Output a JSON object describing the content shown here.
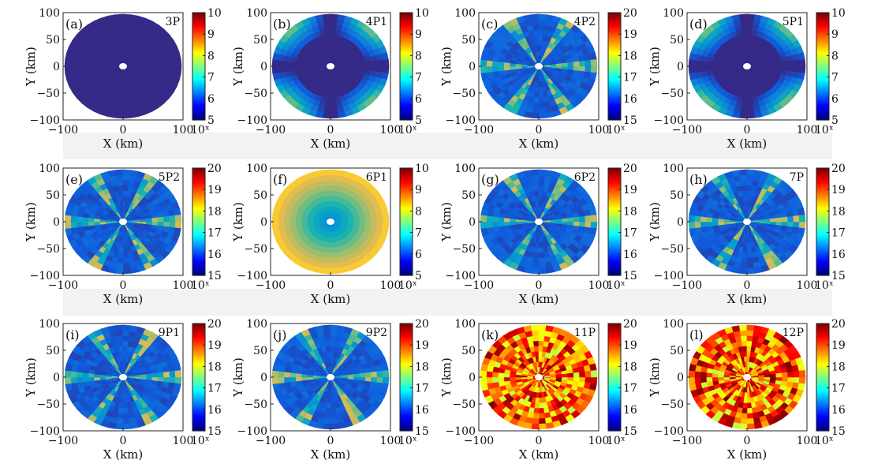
{
  "figure": {
    "x_label": "X (km)",
    "y_label": "Y (km)",
    "colorbar_unit": "10ˣ"
  },
  "chart_data": [
    {
      "type": "heatmap",
      "panel": "(a)",
      "title": "3P",
      "pattern": "uniform",
      "xlim": [
        -100,
        100
      ],
      "ylim": [
        -100,
        100
      ],
      "xticks": [
        "−100",
        "0",
        "100"
      ],
      "yticks": [
        "100",
        "50",
        "0",
        "−50",
        "−100"
      ],
      "xlabel": "X (km)",
      "ylabel": "Y (km)",
      "colorbar": {
        "min": 5,
        "max": 10,
        "ticks": [
          "10",
          "9",
          "8",
          "7",
          "6",
          "5"
        ],
        "unit": "10ˣ"
      }
    },
    {
      "type": "heatmap",
      "panel": "(b)",
      "title": "4P1",
      "pattern": "corner-lobes",
      "xlim": [
        -100,
        100
      ],
      "ylim": [
        -100,
        100
      ],
      "xticks": [
        "−100",
        "0",
        "100"
      ],
      "yticks": [
        "100",
        "50",
        "0",
        "−50",
        "−100"
      ],
      "xlabel": "X (km)",
      "ylabel": "Y (km)",
      "colorbar": {
        "min": 5,
        "max": 10,
        "ticks": [
          "10",
          "9",
          "8",
          "7",
          "6",
          "5"
        ],
        "unit": "10ˣ"
      }
    },
    {
      "type": "heatmap",
      "panel": "(c)",
      "title": "4P2",
      "pattern": "spokes",
      "xlim": [
        -100,
        100
      ],
      "ylim": [
        -100,
        100
      ],
      "xticks": [
        "−100",
        "0",
        "100"
      ],
      "yticks": [
        "100",
        "50",
        "0",
        "−50",
        "−100"
      ],
      "xlabel": "X (km)",
      "ylabel": "Y (km)",
      "colorbar": {
        "min": 15,
        "max": 20,
        "ticks": [
          "20",
          "19",
          "18",
          "17",
          "16",
          "15"
        ],
        "unit": "10ˣ"
      }
    },
    {
      "type": "heatmap",
      "panel": "(d)",
      "title": "5P1",
      "pattern": "corner-lobes",
      "xlim": [
        -100,
        100
      ],
      "ylim": [
        -100,
        100
      ],
      "xticks": [
        "−100",
        "0",
        "100"
      ],
      "yticks": [
        "100",
        "50",
        "0",
        "−50",
        "−100"
      ],
      "xlabel": "X (km)",
      "ylabel": "Y (km)",
      "colorbar": {
        "min": 5,
        "max": 10,
        "ticks": [
          "10",
          "9",
          "8",
          "7",
          "6",
          "5"
        ],
        "unit": "10ˣ"
      }
    },
    {
      "type": "heatmap",
      "panel": "(e)",
      "title": "5P2",
      "pattern": "spokes",
      "xlim": [
        -100,
        100
      ],
      "ylim": [
        -100,
        100
      ],
      "xticks": [
        "−100",
        "0",
        "100"
      ],
      "yticks": [
        "100",
        "50",
        "0",
        "−50",
        "−100"
      ],
      "xlabel": "X (km)",
      "ylabel": "Y (km)",
      "colorbar": {
        "min": 15,
        "max": 20,
        "ticks": [
          "20",
          "19",
          "18",
          "17",
          "16",
          "15"
        ],
        "unit": "10ˣ"
      }
    },
    {
      "type": "heatmap",
      "panel": "(f)",
      "title": "6P1",
      "pattern": "radial-gradient",
      "xlim": [
        -100,
        100
      ],
      "ylim": [
        -100,
        100
      ],
      "xticks": [
        "−100",
        "0",
        "100"
      ],
      "yticks": [
        "100",
        "50",
        "0",
        "−50",
        "−100"
      ],
      "xlabel": "X (km)",
      "ylabel": "Y (km)",
      "colorbar": {
        "min": 5,
        "max": 10,
        "ticks": [
          "10",
          "9",
          "8",
          "7",
          "6",
          "5"
        ],
        "unit": "10ˣ"
      }
    },
    {
      "type": "heatmap",
      "panel": "(g)",
      "title": "6P2",
      "pattern": "spokes",
      "xlim": [
        -100,
        100
      ],
      "ylim": [
        -100,
        100
      ],
      "xticks": [
        "−100",
        "0",
        "100"
      ],
      "yticks": [
        "100",
        "50",
        "0",
        "−50",
        "−100"
      ],
      "xlabel": "X (km)",
      "ylabel": "Y (km)",
      "colorbar": {
        "min": 15,
        "max": 20,
        "ticks": [
          "20",
          "19",
          "18",
          "17",
          "16",
          "15"
        ],
        "unit": "10ˣ"
      }
    },
    {
      "type": "heatmap",
      "panel": "(h)",
      "title": "7P",
      "pattern": "spokes",
      "xlim": [
        -100,
        100
      ],
      "ylim": [
        -100,
        100
      ],
      "xticks": [
        "−100",
        "0",
        "100"
      ],
      "yticks": [
        "100",
        "50",
        "0",
        "−50",
        "−100"
      ],
      "xlabel": "X (km)",
      "ylabel": "Y (km)",
      "colorbar": {
        "min": 15,
        "max": 20,
        "ticks": [
          "20",
          "19",
          "18",
          "17",
          "16",
          "15"
        ],
        "unit": "10ˣ"
      }
    },
    {
      "type": "heatmap",
      "panel": "(i)",
      "title": "9P1",
      "pattern": "spokes",
      "xlim": [
        -100,
        100
      ],
      "ylim": [
        -100,
        100
      ],
      "xticks": [
        "−100",
        "0",
        "100"
      ],
      "yticks": [
        "100",
        "50",
        "0",
        "−50",
        "−100"
      ],
      "xlabel": "X (km)",
      "ylabel": "Y (km)",
      "colorbar": {
        "min": 15,
        "max": 20,
        "ticks": [
          "20",
          "19",
          "18",
          "17",
          "16",
          "15"
        ],
        "unit": "10ˣ"
      }
    },
    {
      "type": "heatmap",
      "panel": "(j)",
      "title": "9P2",
      "pattern": "spokes",
      "xlim": [
        -100,
        100
      ],
      "ylim": [
        -100,
        100
      ],
      "xticks": [
        "−100",
        "0",
        "100"
      ],
      "yticks": [
        "100",
        "50",
        "0",
        "−50",
        "−100"
      ],
      "xlabel": "X (km)",
      "ylabel": "Y (km)",
      "colorbar": {
        "min": 15,
        "max": 20,
        "ticks": [
          "20",
          "19",
          "18",
          "17",
          "16",
          "15"
        ],
        "unit": "10ˣ"
      }
    },
    {
      "type": "heatmap",
      "panel": "(k)",
      "title": "11P",
      "pattern": "high-noise",
      "xlim": [
        -100,
        100
      ],
      "ylim": [
        -100,
        100
      ],
      "xticks": [
        "−100",
        "0",
        "100"
      ],
      "yticks": [
        "100",
        "50",
        "0",
        "−50",
        "−100"
      ],
      "xlabel": "X (km)",
      "ylabel": "Y (km)",
      "colorbar": {
        "min": 15,
        "max": 20,
        "ticks": [
          "20",
          "19",
          "18",
          "17",
          "16",
          "15"
        ],
        "unit": "10ˣ"
      }
    },
    {
      "type": "heatmap",
      "panel": "(l)",
      "title": "12P",
      "pattern": "high-noise",
      "xlim": [
        -100,
        100
      ],
      "ylim": [
        -100,
        100
      ],
      "xticks": [
        "−100",
        "0",
        "100"
      ],
      "yticks": [
        "100",
        "50",
        "0",
        "−50",
        "−100"
      ],
      "xlabel": "X (km)",
      "ylabel": "Y (km)",
      "colorbar": {
        "min": 15,
        "max": 20,
        "ticks": [
          "20",
          "19",
          "18",
          "17",
          "16",
          "15"
        ],
        "unit": "10ˣ"
      }
    }
  ]
}
